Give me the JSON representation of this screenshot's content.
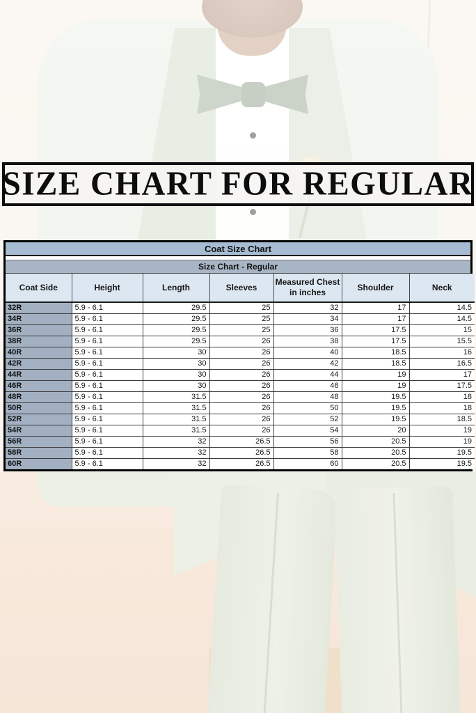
{
  "banner": {
    "title": "SIZE CHART FOR REGULAR"
  },
  "chart_data": {
    "type": "table",
    "title": "Coat Size Chart",
    "subtitle": "Size Chart - Regular",
    "columns": [
      "Coat Side",
      "Height",
      "Length",
      "Sleeves",
      "Measured Chest in inches",
      "Shoulder",
      "Neck"
    ],
    "rows": [
      [
        "32R",
        "5.9 - 6.1",
        "29.5",
        "25",
        "32",
        "17",
        "14.5"
      ],
      [
        "34R",
        "5.9 - 6.1",
        "29.5",
        "25",
        "34",
        "17",
        "14.5"
      ],
      [
        "36R",
        "5.9 - 6.1",
        "29.5",
        "25",
        "36",
        "17.5",
        "15"
      ],
      [
        "38R",
        "5.9 - 6.1",
        "29.5",
        "26",
        "38",
        "17.5",
        "15.5"
      ],
      [
        "40R",
        "5.9 - 6.1",
        "30",
        "26",
        "40",
        "18.5",
        "16"
      ],
      [
        "42R",
        "5.9 - 6.1",
        "30",
        "26",
        "42",
        "18.5",
        "16.5"
      ],
      [
        "44R",
        "5.9 - 6.1",
        "30",
        "26",
        "44",
        "19",
        "17"
      ],
      [
        "46R",
        "5.9 - 6.1",
        "30",
        "26",
        "46",
        "19",
        "17.5"
      ],
      [
        "48R",
        "5.9 - 6.1",
        "31.5",
        "26",
        "48",
        "19.5",
        "18"
      ],
      [
        "50R",
        "5.9 - 6.1",
        "31.5",
        "26",
        "50",
        "19.5",
        "18"
      ],
      [
        "52R",
        "5.9 - 6.1",
        "31.5",
        "26",
        "52",
        "19.5",
        "18.5"
      ],
      [
        "54R",
        "5.9 - 6.1",
        "31.5",
        "26",
        "54",
        "20",
        "19"
      ],
      [
        "56R",
        "5.9 - 6.1",
        "32",
        "26.5",
        "56",
        "20.5",
        "19"
      ],
      [
        "58R",
        "5.9 - 6.1",
        "32",
        "26.5",
        "58",
        "20.5",
        "19.5"
      ],
      [
        "60R",
        "5.9 - 6.1",
        "32",
        "26.5",
        "60",
        "20.5",
        "19.5"
      ]
    ]
  },
  "photo": {
    "description_elements": [
      "model-photo",
      "tuxedo-jacket",
      "dress-shirt",
      "bow-tie",
      "boutonniere",
      "pocket-square",
      "trousers"
    ]
  },
  "colors": {
    "banner_border": "#0d0d0d",
    "banner_background": "#f6f5f2",
    "table_title_bg": "#a7bcd3",
    "table_subtitle_bg": "#a7b5c5",
    "table_header_bg": "#dde7f2",
    "row_label_bg": "#a2b0c2",
    "suit_mint": "#e6ece1",
    "background_cream": "#f6f1e7",
    "background_pink": "#f4e0d0"
  }
}
